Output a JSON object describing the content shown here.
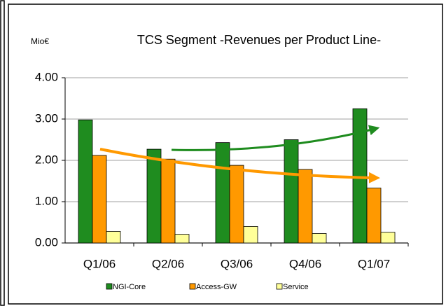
{
  "chart_data": {
    "type": "bar",
    "title": "TCS Segment -Revenues per Product Line-",
    "y_label": "Mio€",
    "categories": [
      "Q1/06",
      "Q2/06",
      "Q3/06",
      "Q4/06",
      "Q1/07"
    ],
    "series": [
      {
        "name": "NGI-Core",
        "color": "#1f8c1f",
        "values": [
          2.98,
          2.27,
          2.43,
          2.5,
          3.25
        ]
      },
      {
        "name": "Access-GW",
        "color": "#ff9900",
        "values": [
          2.12,
          2.03,
          1.88,
          1.78,
          1.33
        ]
      },
      {
        "name": "Service",
        "color": "#ffff99",
        "values": [
          0.28,
          0.21,
          0.4,
          0.23,
          0.26
        ]
      }
    ],
    "ylim": [
      0,
      4
    ],
    "yticks": [
      {
        "value": 0,
        "label": "0.00"
      },
      {
        "value": 1,
        "label": "1.00"
      },
      {
        "value": 2,
        "label": "2.00"
      },
      {
        "value": 3,
        "label": "3.00"
      },
      {
        "value": 4,
        "label": "4.00"
      }
    ],
    "grid": true
  }
}
